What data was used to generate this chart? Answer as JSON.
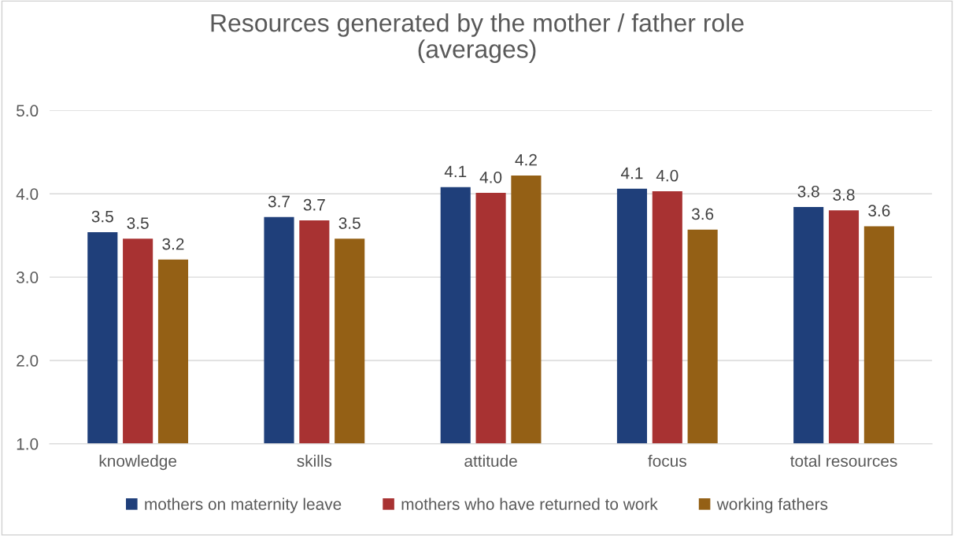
{
  "chart_data": {
    "type": "bar",
    "title": "Resources generated by the mother / father role\n(averages)",
    "categories": [
      "knowledge",
      "skills",
      "attitude",
      "focus",
      "total resources"
    ],
    "series": [
      {
        "name": "mothers on maternity leave",
        "color": "#1f3f7a",
        "values": [
          3.54,
          3.72,
          4.08,
          4.06,
          3.84
        ],
        "value_labels": [
          "3.5",
          "3.7",
          "4.1",
          "4.1",
          "3.8"
        ]
      },
      {
        "name": "mothers who have returned to work",
        "color": "#a83232",
        "values": [
          3.46,
          3.68,
          4.01,
          4.03,
          3.8
        ],
        "value_labels": [
          "3.5",
          "3.7",
          "4.0",
          "4.0",
          "3.8"
        ]
      },
      {
        "name": "working fathers",
        "color": "#946015",
        "values": [
          3.21,
          3.46,
          4.22,
          3.57,
          3.61
        ],
        "value_labels": [
          "3.2",
          "3.5",
          "4.2",
          "3.6",
          "3.6"
        ]
      }
    ],
    "ylim": [
      1.0,
      5.0
    ],
    "yticks": [
      {
        "value": 1.0,
        "label": "1.0"
      },
      {
        "value": 2.0,
        "label": "2.0"
      },
      {
        "value": 3.0,
        "label": "3.0"
      },
      {
        "value": 4.0,
        "label": "4.0"
      },
      {
        "value": 5.0,
        "label": "5.0"
      }
    ],
    "grid": "y",
    "legend": "bottom"
  }
}
